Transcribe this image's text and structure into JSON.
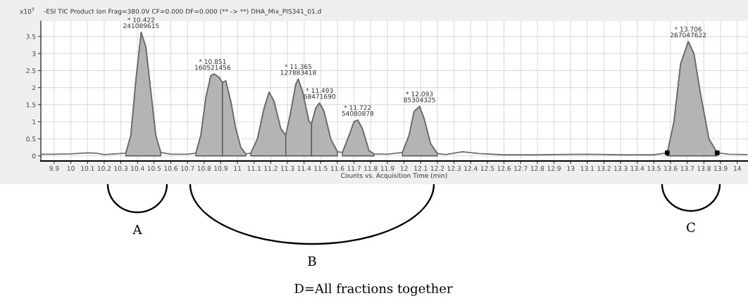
{
  "chart_data": {
    "type": "line",
    "title": "-ESI TIC Product Ion Frag=380.0V CF=0.000 DF=0.000 (** -> **) DHA_Mix_PIS341_01.d",
    "xlabel": "Counts vs. Acquisition Time (min)",
    "ylabel": "x10$^{7}$",
    "xlim": [
      9.82,
      14.06
    ],
    "ylim": [
      -0.15,
      3.95
    ],
    "xticks": [
      9.9,
      10,
      10.1,
      10.2,
      10.3,
      10.4,
      10.5,
      10.6,
      10.7,
      10.8,
      10.9,
      11,
      11.1,
      11.2,
      11.3,
      11.4,
      11.5,
      11.6,
      11.7,
      11.8,
      11.9,
      12,
      12.1,
      12.2,
      12.3,
      12.4,
      12.5,
      12.6,
      12.7,
      12.8,
      12.9,
      13,
      13.1,
      13.2,
      13.3,
      13.4,
      13.5,
      13.6,
      13.7,
      13.8,
      13.9,
      14
    ],
    "yticks": [
      0,
      0.5,
      1,
      1.5,
      2,
      2.5,
      3,
      3.5
    ],
    "grid": true,
    "legend": false,
    "series": [
      {
        "type": "area",
        "color": "#b4b4b4",
        "x": [
          10.33,
          10.36,
          10.39,
          10.422,
          10.45,
          10.48,
          10.51,
          10.54
        ],
        "values": [
          0.08,
          0.6,
          2.2,
          3.62,
          3.2,
          1.9,
          0.6,
          0.1
        ]
      },
      {
        "type": "area",
        "color": "#b4b4b4",
        "x": [
          10.75,
          10.78,
          10.81,
          10.84,
          10.86,
          10.89,
          10.91
        ],
        "values": [
          0.08,
          0.6,
          1.7,
          2.35,
          2.4,
          2.3,
          2.15
        ]
      },
      {
        "type": "area",
        "color": "#b4b4b4",
        "x": [
          10.91,
          10.93,
          10.96,
          10.99,
          11.02,
          11.05
        ],
        "values": [
          2.15,
          2.2,
          1.6,
          0.8,
          0.25,
          0.06
        ]
      },
      {
        "type": "area",
        "color": "#b4b4b4",
        "x": [
          11.08,
          11.12,
          11.16,
          11.19,
          11.22,
          11.26,
          11.29
        ],
        "values": [
          0.08,
          0.5,
          1.4,
          1.87,
          1.6,
          0.8,
          0.6
        ]
      },
      {
        "type": "area",
        "color": "#b4b4b4",
        "x": [
          11.29,
          11.32,
          11.35,
          11.365,
          11.39,
          11.43,
          11.445
        ],
        "values": [
          0.6,
          1.3,
          2.1,
          2.25,
          1.9,
          1.0,
          0.95
        ]
      },
      {
        "type": "area",
        "color": "#b4b4b4",
        "x": [
          11.445,
          11.47,
          11.493,
          11.52,
          11.56,
          11.6
        ],
        "values": [
          0.95,
          1.4,
          1.55,
          1.3,
          0.5,
          0.12
        ]
      },
      {
        "type": "area",
        "color": "#b4b4b4",
        "x": [
          11.63,
          11.67,
          11.7,
          11.722,
          11.75,
          11.79,
          11.82
        ],
        "values": [
          0.1,
          0.6,
          1.0,
          1.05,
          0.8,
          0.15,
          0.06
        ]
      },
      {
        "type": "area",
        "color": "#b4b4b4",
        "x": [
          11.99,
          12.03,
          12.06,
          12.093,
          12.12,
          12.16,
          12.2
        ],
        "values": [
          0.1,
          0.6,
          1.3,
          1.45,
          1.1,
          0.35,
          0.07
        ]
      },
      {
        "type": "area",
        "color": "#b4b4b4",
        "x": [
          13.58,
          13.62,
          13.66,
          13.706,
          13.74,
          13.78,
          13.83,
          13.88
        ],
        "values": [
          0.09,
          1.0,
          2.7,
          3.35,
          3.0,
          1.8,
          0.5,
          0.09
        ]
      },
      {
        "color": "#6e6e6e",
        "x": [
          9.82,
          9.9,
          10.0,
          10.1,
          10.15,
          10.2,
          10.3,
          10.33,
          10.36,
          10.39,
          10.422,
          10.45,
          10.48,
          10.51,
          10.54,
          10.6,
          10.7,
          10.75,
          10.78,
          10.81,
          10.84,
          10.86,
          10.89,
          10.91,
          10.93,
          10.96,
          10.99,
          11.02,
          11.05,
          11.08,
          11.12,
          11.16,
          11.19,
          11.22,
          11.26,
          11.29,
          11.32,
          11.35,
          11.365,
          11.39,
          11.43,
          11.445,
          11.47,
          11.493,
          11.52,
          11.56,
          11.6,
          11.63,
          11.67,
          11.7,
          11.722,
          11.75,
          11.79,
          11.82,
          11.9,
          11.99,
          12.03,
          12.06,
          12.093,
          12.12,
          12.16,
          12.2,
          12.25,
          12.35,
          12.45,
          12.6,
          12.8,
          13.1,
          13.3,
          13.5,
          13.58,
          13.62,
          13.66,
          13.706,
          13.74,
          13.78,
          13.83,
          13.88,
          13.95,
          14.06
        ],
        "values": [
          0.05,
          0.05,
          0.06,
          0.09,
          0.08,
          0.04,
          0.07,
          0.08,
          0.6,
          2.2,
          3.62,
          3.2,
          1.9,
          0.6,
          0.1,
          0.05,
          0.05,
          0.08,
          0.6,
          1.7,
          2.35,
          2.4,
          2.3,
          2.15,
          2.2,
          1.6,
          0.8,
          0.25,
          0.06,
          0.08,
          0.5,
          1.4,
          1.87,
          1.6,
          0.8,
          0.6,
          1.3,
          2.1,
          2.25,
          1.9,
          1.0,
          0.95,
          1.4,
          1.55,
          1.3,
          0.5,
          0.12,
          0.1,
          0.6,
          1.0,
          1.05,
          0.8,
          0.15,
          0.06,
          0.05,
          0.1,
          0.6,
          1.3,
          1.45,
          1.1,
          0.35,
          0.07,
          0.04,
          0.12,
          0.07,
          0.03,
          0.03,
          0.05,
          0.03,
          0.03,
          0.09,
          1.0,
          2.7,
          3.35,
          3.0,
          1.8,
          0.5,
          0.09,
          0.05,
          0.04
        ]
      },
      {
        "type": "scatter",
        "color": "#000000",
        "marker": "square",
        "x": [
          13.58,
          13.88
        ],
        "values": [
          0.09,
          0.09
        ]
      }
    ],
    "annotations": [
      {
        "text": "* 10.422\n241089615",
        "x": 10.422,
        "y": 3.62
      },
      {
        "text": "* 10.851\n160521456",
        "x": 10.851,
        "y": 2.4
      },
      {
        "text": "* 11.365\n127883418",
        "x": 11.365,
        "y": 2.25
      },
      {
        "text": "* 11.493\n68471690",
        "x": 11.493,
        "y": 1.55
      },
      {
        "text": "* 11.722\n54080878",
        "x": 11.722,
        "y": 1.05
      },
      {
        "text": "* 12.093\n85304325",
        "x": 12.093,
        "y": 1.45
      },
      {
        "text": "* 13.706\n267047622",
        "x": 13.706,
        "y": 3.35
      },
      "A",
      "B",
      "C",
      "D=All fractions together"
    ]
  }
}
